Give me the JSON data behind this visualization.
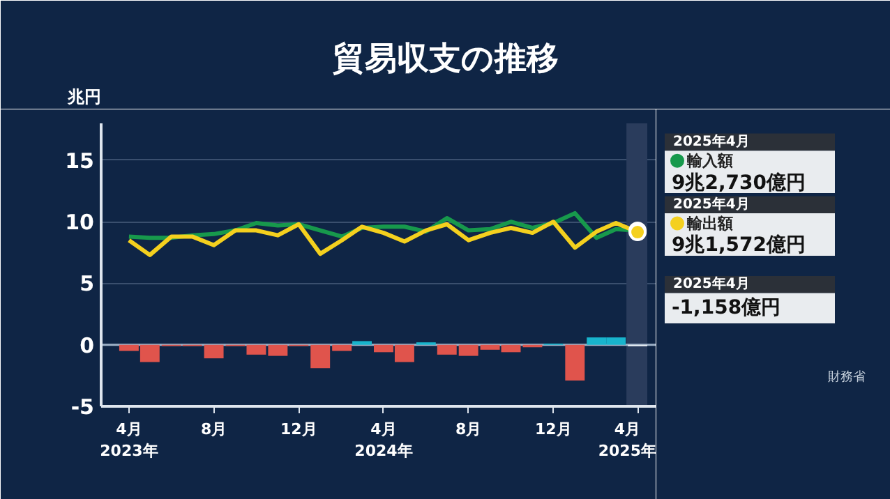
{
  "chart_data": {
    "type": "line",
    "title": "貿易収支の推移",
    "ylabel": "兆円",
    "x": [
      "2023-04",
      "2023-05",
      "2023-06",
      "2023-07",
      "2023-08",
      "2023-09",
      "2023-10",
      "2023-11",
      "2023-12",
      "2024-01",
      "2024-02",
      "2024-03",
      "2024-04",
      "2024-05",
      "2024-06",
      "2024-07",
      "2024-08",
      "2024-09",
      "2024-10",
      "2024-11",
      "2024-12",
      "2025-01",
      "2025-02",
      "2025-03",
      "2025-04"
    ],
    "series": [
      {
        "name": "輸入額",
        "color": "#17994c",
        "values": [
          8.8,
          8.7,
          8.7,
          8.9,
          9.0,
          9.3,
          9.9,
          9.7,
          9.8,
          9.3,
          8.8,
          9.5,
          9.6,
          9.6,
          9.2,
          10.3,
          9.3,
          9.4,
          10.0,
          9.5,
          9.9,
          10.7,
          8.7,
          9.4,
          9.273
        ]
      },
      {
        "name": "輸出額",
        "color": "#f4d01e",
        "values": [
          8.5,
          7.3,
          8.8,
          8.8,
          8.1,
          9.3,
          9.3,
          8.9,
          9.8,
          7.4,
          8.5,
          9.6,
          9.1,
          8.4,
          9.3,
          9.8,
          8.5,
          9.1,
          9.5,
          9.1,
          10.0,
          7.9,
          9.2,
          9.9,
          9.157
        ]
      },
      {
        "type": "bar",
        "colors": [
          "#e0544c",
          "#e0544c",
          "#e0544c",
          "#e0544c",
          "#e0544c",
          "#e0544c",
          "#e0544c",
          "#e0544c",
          "#e0544c",
          "#e0544c",
          "#e0544c",
          "#18b4cc",
          "#e0544c",
          "#e0544c",
          "#18b4cc",
          "#e0544c",
          "#e0544c",
          "#e0544c",
          "#e0544c",
          "#e0544c",
          "#18b4cc",
          "#e0544c",
          "#18b4cc",
          "#18b4cc",
          "#e8eef4"
        ],
        "values": [
          -0.5,
          -1.4,
          -0.1,
          -0.1,
          -1.1,
          -0.1,
          -0.8,
          -0.9,
          -0.1,
          -1.9,
          -0.5,
          0.3,
          -0.6,
          -1.4,
          0.2,
          -0.8,
          -0.9,
          -0.4,
          -0.6,
          -0.2,
          0.1,
          -2.9,
          0.6,
          0.6,
          -0.116
        ]
      }
    ],
    "xlim": [
      "2023-02-20",
      "2025-04-28"
    ],
    "xticks": [
      {
        "value": "2023-04",
        "label": "4月\n2023年"
      },
      {
        "value": "2023-08",
        "label": "8月"
      },
      {
        "value": "2023-12",
        "label": "12月"
      },
      {
        "value": "2024-04",
        "label": "4月\n2024年"
      },
      {
        "value": "2024-08",
        "label": "8月"
      },
      {
        "value": "2024-12",
        "label": "12月"
      },
      {
        "value": "2025-04",
        "label": "4月\n2025年"
      }
    ],
    "ylim": [
      -5,
      18
    ],
    "yticks": [
      -5,
      0,
      5,
      10,
      15
    ],
    "grid": "y",
    "legend": "right",
    "ref_lines": [
      {
        "axis": "y",
        "value": 0,
        "color": "#9fb2c8"
      }
    ],
    "bands": [
      {
        "axis": "x",
        "from": "2025-03-16",
        "to": "2025-04-15",
        "color": "#2a3c5c"
      }
    ],
    "annotations": [
      "2025年4月",
      {
        "text": "9兆2,730億円",
        "x": "2025-04",
        "y": 9.273
      },
      "2025年4月",
      {
        "text": "9兆1,572億円",
        "x": "2025-04",
        "y": 9.157
      },
      "2025年4月",
      "-1,158億円",
      "財務省"
    ]
  }
}
